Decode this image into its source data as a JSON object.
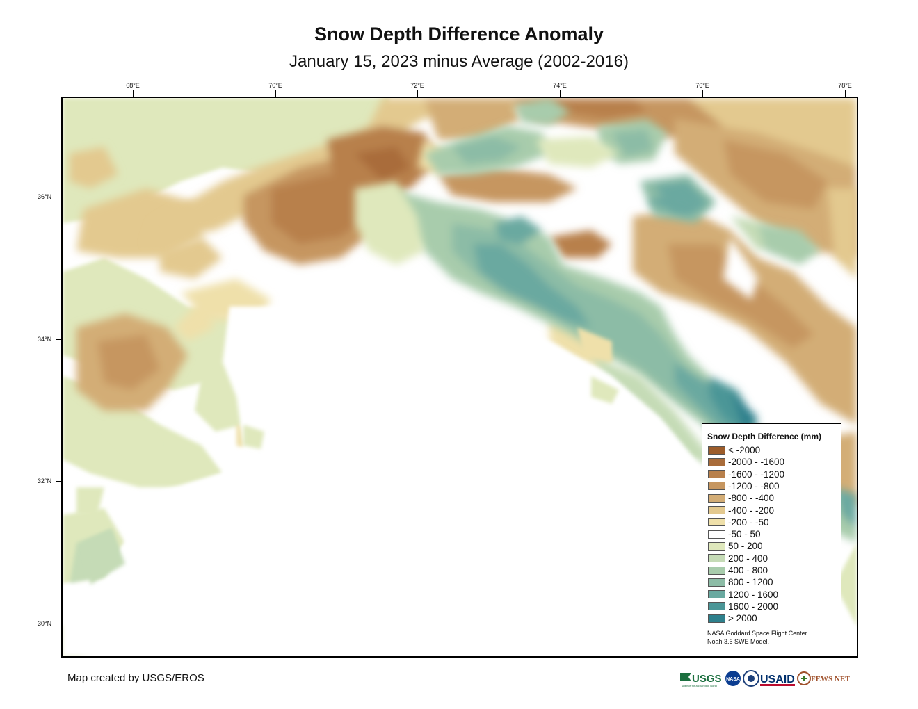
{
  "title": "Snow Depth Difference Anomaly",
  "subtitle": "January 15, 2023 minus Average (2002-2016)",
  "lon_ticks": [
    "68°E",
    "70°E",
    "72°E",
    "74°E",
    "76°E",
    "78°E"
  ],
  "lat_ticks": [
    "36°N",
    "34°N",
    "32°N",
    "30°N"
  ],
  "legend": {
    "title": "Snow Depth Difference (mm)",
    "classes": [
      {
        "label": "< -2000",
        "color": "#9c5c2a"
      },
      {
        "label": "-2000 - -1600",
        "color": "#a96c3a"
      },
      {
        "label": "-1600 - -1200",
        "color": "#b8804c"
      },
      {
        "label": "-1200 - -800",
        "color": "#c69660"
      },
      {
        "label": "-800 - -400",
        "color": "#d3ad76"
      },
      {
        "label": "-400 - -200",
        "color": "#e3c98f"
      },
      {
        "label": "-200 - -50",
        "color": "#efe0aa"
      },
      {
        "label": "-50 - 50",
        "color": "#ffffff"
      },
      {
        "label": "50 - 200",
        "color": "#dfe8bc"
      },
      {
        "label": "200 - 400",
        "color": "#c5dbb6"
      },
      {
        "label": "400 - 800",
        "color": "#a8ccac"
      },
      {
        "label": "800 - 1200",
        "color": "#8cbca6"
      },
      {
        "label": "1200 - 1600",
        "color": "#6aa9a0"
      },
      {
        "label": "1600 - 2000",
        "color": "#4b9697"
      },
      {
        "label": "> 2000",
        "color": "#2e808c"
      }
    ],
    "credit_line1": "NASA Goddard Space Flight Center",
    "credit_line2": "Noah 3.6 SWE Model."
  },
  "footer": "Map created by USGS/EROS",
  "logos": {
    "usgs": "USGS",
    "usgs_tagline": "science for a changing world",
    "nasa": "NASA",
    "usaid": "USAID",
    "fewsnet": "FEWS NET"
  }
}
